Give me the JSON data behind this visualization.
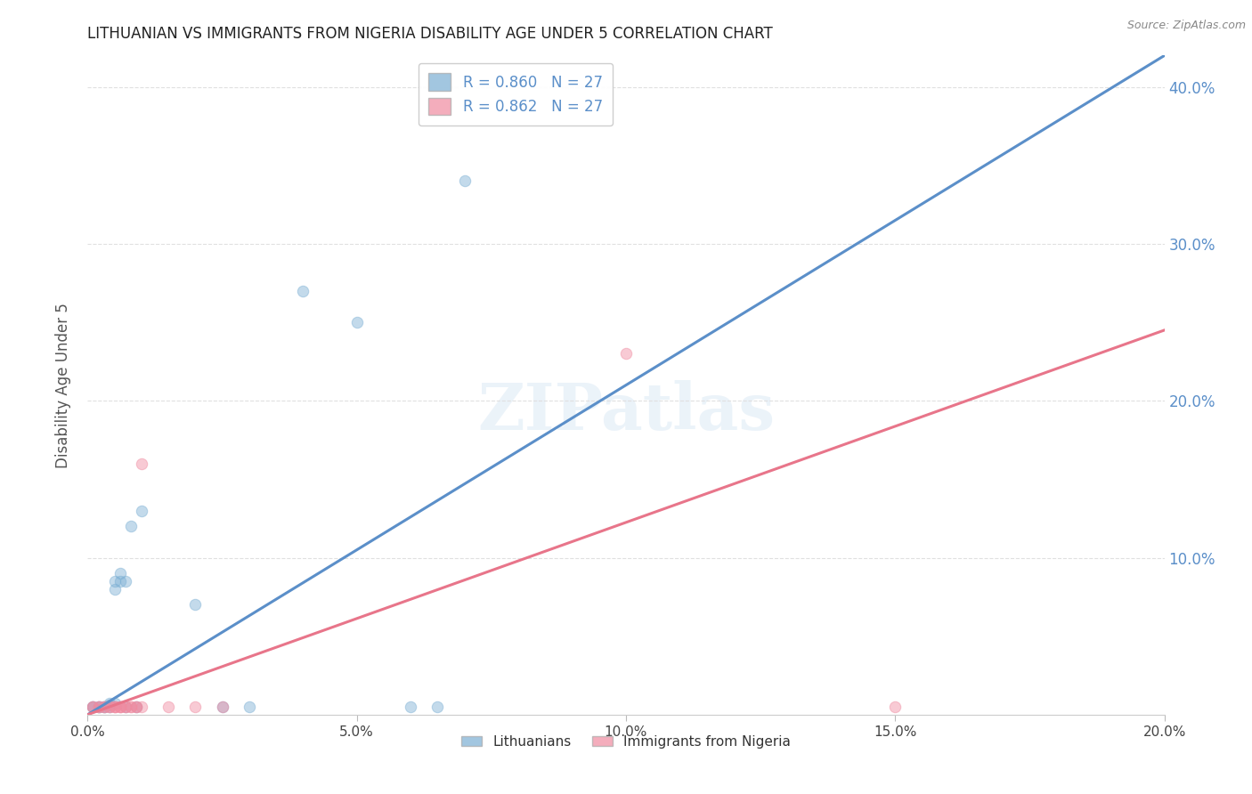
{
  "title": "LITHUANIAN VS IMMIGRANTS FROM NIGERIA DISABILITY AGE UNDER 5 CORRELATION CHART",
  "source": "Source: ZipAtlas.com",
  "ylabel": "Disability Age Under 5",
  "legend_entries": [
    {
      "label": "R = 0.860   N = 27",
      "color": "#a8c4e8"
    },
    {
      "label": "R = 0.862   N = 27",
      "color": "#f4a8c0"
    }
  ],
  "legend_labels": [
    "Lithuanians",
    "Immigrants from Nigeria"
  ],
  "watermark": "ZIPatlas",
  "blue_scatter": [
    [
      0.001,
      0.005
    ],
    [
      0.001,
      0.005
    ],
    [
      0.002,
      0.005
    ],
    [
      0.002,
      0.005
    ],
    [
      0.003,
      0.005
    ],
    [
      0.003,
      0.005
    ],
    [
      0.004,
      0.005
    ],
    [
      0.004,
      0.006
    ],
    [
      0.004,
      0.007
    ],
    [
      0.005,
      0.007
    ],
    [
      0.005,
      0.08
    ],
    [
      0.005,
      0.085
    ],
    [
      0.006,
      0.085
    ],
    [
      0.006,
      0.09
    ],
    [
      0.007,
      0.085
    ],
    [
      0.007,
      0.005
    ],
    [
      0.008,
      0.12
    ],
    [
      0.009,
      0.005
    ],
    [
      0.01,
      0.13
    ],
    [
      0.02,
      0.07
    ],
    [
      0.025,
      0.005
    ],
    [
      0.03,
      0.005
    ],
    [
      0.04,
      0.27
    ],
    [
      0.05,
      0.25
    ],
    [
      0.06,
      0.005
    ],
    [
      0.065,
      0.005
    ],
    [
      0.07,
      0.34
    ]
  ],
  "pink_scatter": [
    [
      0.001,
      0.005
    ],
    [
      0.001,
      0.005
    ],
    [
      0.002,
      0.005
    ],
    [
      0.002,
      0.005
    ],
    [
      0.003,
      0.005
    ],
    [
      0.003,
      0.005
    ],
    [
      0.004,
      0.005
    ],
    [
      0.004,
      0.005
    ],
    [
      0.005,
      0.005
    ],
    [
      0.005,
      0.005
    ],
    [
      0.005,
      0.005
    ],
    [
      0.006,
      0.005
    ],
    [
      0.006,
      0.005
    ],
    [
      0.006,
      0.005
    ],
    [
      0.007,
      0.005
    ],
    [
      0.007,
      0.005
    ],
    [
      0.008,
      0.005
    ],
    [
      0.008,
      0.005
    ],
    [
      0.009,
      0.005
    ],
    [
      0.009,
      0.005
    ],
    [
      0.01,
      0.005
    ],
    [
      0.01,
      0.16
    ],
    [
      0.015,
      0.005
    ],
    [
      0.02,
      0.005
    ],
    [
      0.025,
      0.005
    ],
    [
      0.1,
      0.23
    ],
    [
      0.15,
      0.005
    ]
  ],
  "blue_line": {
    "x0": 0.0,
    "y0": 0.0,
    "x1": 0.2,
    "y1": 0.42
  },
  "pink_line": {
    "x0": 0.0,
    "y0": 0.0,
    "x1": 0.2,
    "y1": 0.245
  },
  "diag_line": {
    "x0": 0.0,
    "y0": 0.0,
    "x1": 0.2,
    "y1": 0.42
  },
  "xlim": [
    0.0,
    0.2
  ],
  "ylim": [
    0.0,
    0.42
  ],
  "right_yticks": [
    0.1,
    0.2,
    0.3,
    0.4
  ],
  "right_yticklabels": [
    "10.0%",
    "20.0%",
    "30.0%",
    "40.0%"
  ],
  "xticks": [
    0.0,
    0.05,
    0.1,
    0.15,
    0.2
  ],
  "xticklabels": [
    "0.0%",
    "5.0%",
    "10.0%",
    "15.0%",
    "20.0%"
  ],
  "bg_color": "#ffffff",
  "blue_color": "#7bafd4",
  "pink_color": "#f08ba0",
  "blue_line_color": "#5b8fc9",
  "pink_line_color": "#e8758a",
  "diag_color": "#c0c0c0",
  "grid_color": "#e0e0e0",
  "title_color": "#222222",
  "right_tick_color": "#5b8fc9",
  "marker_size": 80
}
